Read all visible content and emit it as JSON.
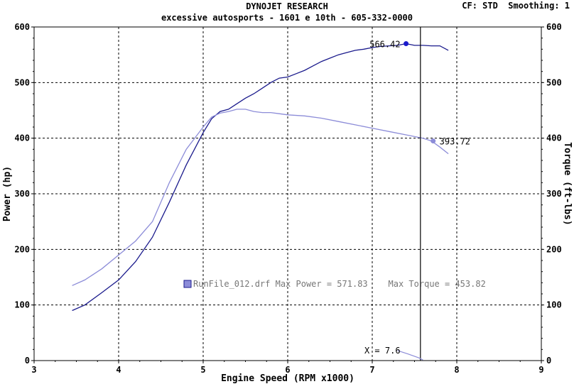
{
  "header": {
    "title": "DYNOJET RESEARCH",
    "subtitle": "excessive autosports - 1601 e 10th - 605-332-0000",
    "cf": "CF: STD",
    "smoothing": "Smoothing: 1"
  },
  "chart_data": {
    "type": "line",
    "xlabel": "Engine Speed (RPM x1000)",
    "ylabel_left": "Power (hp)",
    "ylabel_right": "Torque (ft-lbs)",
    "xlim": [
      3,
      9
    ],
    "ylim": [
      0,
      600
    ],
    "x_ticks": [
      3,
      4,
      5,
      6,
      7,
      8,
      9
    ],
    "y_ticks": [
      0,
      100,
      200,
      300,
      400,
      500,
      600
    ],
    "grid": true,
    "series": [
      {
        "name": "Power",
        "color": "#1a1a8c",
        "points": [
          [
            3.45,
            90
          ],
          [
            3.6,
            100
          ],
          [
            3.8,
            122
          ],
          [
            4.0,
            145
          ],
          [
            4.2,
            178
          ],
          [
            4.4,
            222
          ],
          [
            4.6,
            285
          ],
          [
            4.8,
            352
          ],
          [
            5.0,
            410
          ],
          [
            5.1,
            435
          ],
          [
            5.2,
            448
          ],
          [
            5.3,
            452
          ],
          [
            5.4,
            462
          ],
          [
            5.5,
            472
          ],
          [
            5.6,
            480
          ],
          [
            5.7,
            490
          ],
          [
            5.8,
            500
          ],
          [
            5.9,
            508
          ],
          [
            6.0,
            510
          ],
          [
            6.1,
            516
          ],
          [
            6.2,
            522
          ],
          [
            6.3,
            530
          ],
          [
            6.4,
            538
          ],
          [
            6.5,
            544
          ],
          [
            6.6,
            550
          ],
          [
            6.7,
            554
          ],
          [
            6.8,
            558
          ],
          [
            6.9,
            560
          ],
          [
            7.0,
            563
          ],
          [
            7.1,
            565
          ],
          [
            7.2,
            566
          ],
          [
            7.3,
            567
          ],
          [
            7.4,
            570
          ],
          [
            7.5,
            567
          ],
          [
            7.6,
            567
          ],
          [
            7.7,
            566
          ],
          [
            7.8,
            566
          ],
          [
            7.9,
            558
          ]
        ]
      },
      {
        "name": "Torque",
        "color": "#8c8cd8",
        "points": [
          [
            3.45,
            135
          ],
          [
            3.6,
            145
          ],
          [
            3.8,
            165
          ],
          [
            4.0,
            190
          ],
          [
            4.2,
            215
          ],
          [
            4.4,
            250
          ],
          [
            4.6,
            320
          ],
          [
            4.8,
            380
          ],
          [
            5.0,
            420
          ],
          [
            5.1,
            438
          ],
          [
            5.2,
            445
          ],
          [
            5.3,
            448
          ],
          [
            5.4,
            452
          ],
          [
            5.5,
            452
          ],
          [
            5.6,
            448
          ],
          [
            5.7,
            446
          ],
          [
            5.8,
            446
          ],
          [
            5.9,
            444
          ],
          [
            6.0,
            442
          ],
          [
            6.2,
            440
          ],
          [
            6.4,
            436
          ],
          [
            6.6,
            430
          ],
          [
            6.8,
            424
          ],
          [
            7.0,
            418
          ],
          [
            7.2,
            412
          ],
          [
            7.4,
            406
          ],
          [
            7.6,
            400
          ],
          [
            7.7,
            395
          ],
          [
            7.8,
            384
          ],
          [
            7.9,
            372
          ]
        ]
      }
    ],
    "cursor_x": 7.57,
    "cursor_label": "X = 7.6",
    "cursor_lines": [
      [
        7.3,
        18
      ],
      [
        7.42,
        12
      ],
      [
        7.55,
        5
      ],
      [
        7.6,
        1
      ]
    ],
    "power_marker": {
      "x": 7.4,
      "y": 570,
      "label": "566.42"
    },
    "torque_marker": {
      "x": 7.72,
      "y": 395,
      "label": "393.72"
    },
    "legend_text": "RunFile_012.drf Max Power = 571.83    Max Torque = 453.82",
    "legend_position": "center"
  }
}
